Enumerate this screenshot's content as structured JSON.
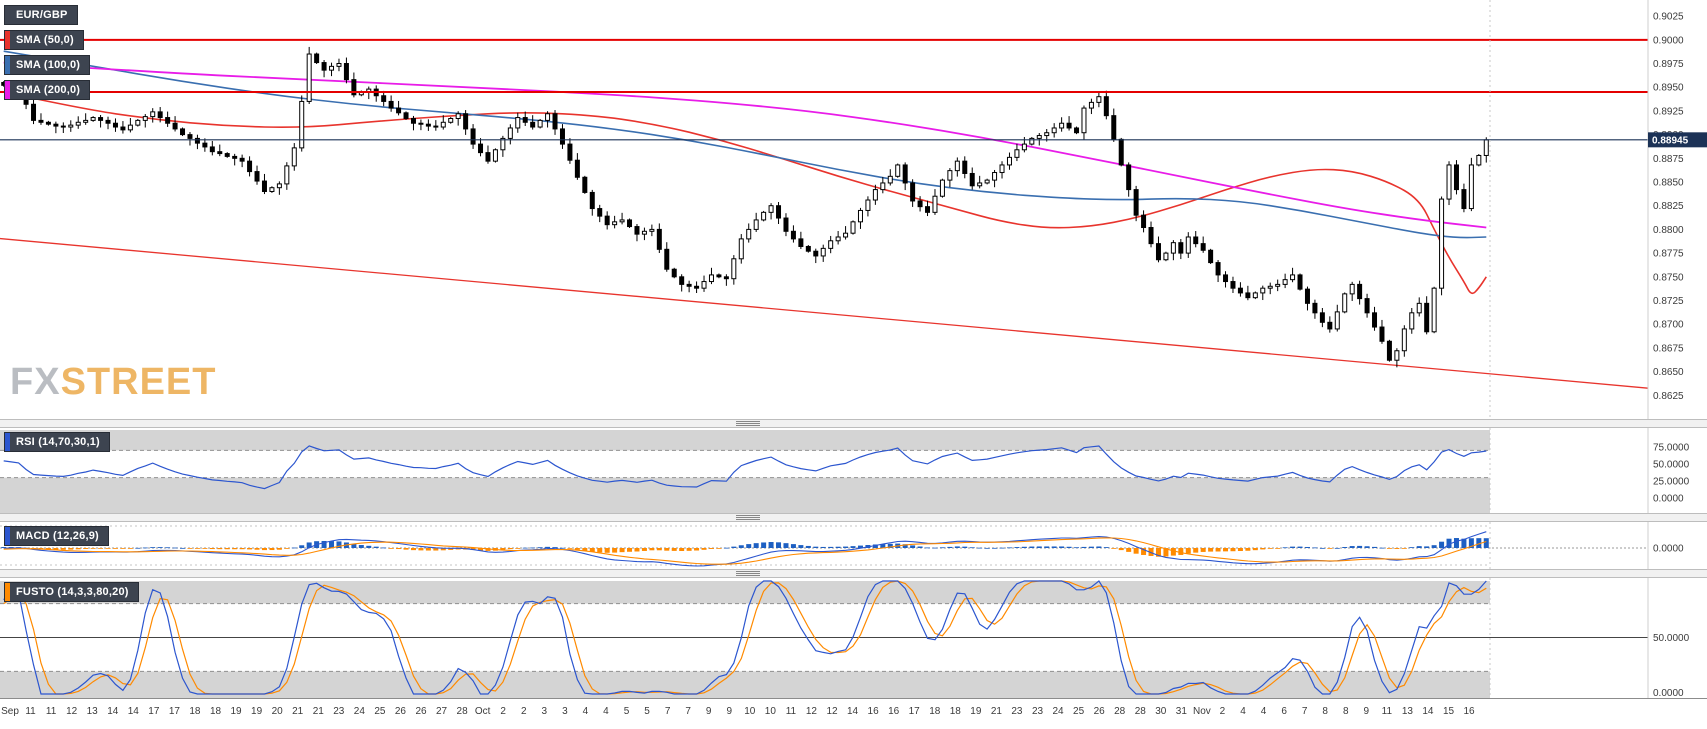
{
  "pair_label": "EUR/GBP",
  "watermark": {
    "fx": "FX",
    "street": "STREET"
  },
  "badges": {
    "main": [
      {
        "label": "EUR/GBP",
        "stripe": "#3d4450"
      },
      {
        "label": "SMA (50,0)",
        "stripe": "#e8342d"
      },
      {
        "label": "SMA (100,0)",
        "stripe": "#3a6fb0"
      },
      {
        "label": "SMA (200,0)",
        "stripe": "#e81ce8"
      }
    ],
    "rsi": {
      "label": "RSI (14,70,30,1)",
      "stripe": "#2c56cf"
    },
    "macd": {
      "label": "MACD (12,26,9)",
      "stripe": "#2c56cf"
    },
    "stoch": {
      "label": "FUSTO (14,3,3,80,20)",
      "stripe": "#ff8a00"
    }
  },
  "colors": {
    "candle_up": "#ffffff",
    "candle_down": "#000000",
    "candle_outline": "#000000",
    "sma50": "#e8342d",
    "sma100": "#3a6fb0",
    "sma200": "#e81ce8",
    "hline_red": "#e40000",
    "trendline": "#e8342d",
    "current_price_line": "#1c3256",
    "price_badge_bg": "#1c3256",
    "price_badge_text": "#ffffff",
    "rsi_line": "#2c56cf",
    "macd_line": "#2c56cf",
    "signal_line": "#ff8a00",
    "hist_pos": "#1d5fc2",
    "hist_neg": "#ff8a00",
    "stoch_k": "#2c56cf",
    "stoch_d": "#ff8a00",
    "band_gray": "#d4d4d4",
    "axis_text": "#3a3a3a"
  },
  "chart_data": {
    "type": "candlestick",
    "title": "EUR/GBP price chart with SMA(50), SMA(100), SMA(200) overlays and RSI(14,70,30,1), MACD(12,26,9), Fast Stochastic FUSTO(14,3,3,80,20) sub-panels",
    "pair": "EUR/GBP",
    "current_price": 0.88945,
    "y_range": {
      "top": 0.9042,
      "bottom": 0.86
    },
    "y_ticks": [
      0.9025,
      0.9,
      0.8975,
      0.895,
      0.8925,
      0.89,
      0.8875,
      0.885,
      0.8825,
      0.88,
      0.8775,
      0.875,
      0.8725,
      0.87,
      0.8675,
      0.865,
      0.8625
    ],
    "hlines": [
      {
        "price": 0.9,
        "color": "#e40000"
      },
      {
        "price": 0.8945,
        "color": "#e40000"
      }
    ],
    "trendline": {
      "from_price": 0.879,
      "to_price": 0.8648,
      "color": "#e8342d"
    },
    "first_open": 0.8955,
    "pre_closes": [
      0.8975,
      0.8968,
      0.8972,
      0.896,
      0.8955,
      0.8962,
      0.895,
      0.8945,
      0.8952,
      0.8958,
      0.8948,
      0.894,
      0.8945,
      0.8952,
      0.8944,
      0.8938,
      0.8942,
      0.895,
      0.8946,
      0.894,
      0.8935,
      0.8942,
      0.8948,
      0.894,
      0.8932,
      0.8938,
      0.8944,
      0.8936,
      0.893,
      0.8936,
      0.8942,
      0.8934,
      0.894,
      0.8946,
      0.8938,
      0.8944,
      0.895,
      0.8946,
      0.8942,
      0.8948
    ],
    "closes": [
      0.8952,
      0.895,
      0.8948,
      0.8932,
      0.8915,
      0.8913,
      0.8911,
      0.8909,
      0.8908,
      0.891,
      0.8913,
      0.8915,
      0.8918,
      0.8915,
      0.8912,
      0.8908,
      0.8905,
      0.891,
      0.8915,
      0.8919,
      0.8924,
      0.8918,
      0.8912,
      0.8906,
      0.89,
      0.8896,
      0.8891,
      0.8887,
      0.8882,
      0.888,
      0.8877,
      0.8875,
      0.8872,
      0.8861,
      0.8851,
      0.884,
      0.8844,
      0.8848,
      0.8867,
      0.8886,
      0.8935,
      0.8985,
      0.8976,
      0.8968,
      0.8972,
      0.8975,
      0.8958,
      0.8942,
      0.8945,
      0.8948,
      0.8941,
      0.8935,
      0.8928,
      0.8923,
      0.8917,
      0.8912,
      0.8911,
      0.8909,
      0.8908,
      0.8913,
      0.8917,
      0.8922,
      0.8906,
      0.889,
      0.8881,
      0.8872,
      0.8884,
      0.8896,
      0.8907,
      0.8918,
      0.8913,
      0.8908,
      0.8915,
      0.8922,
      0.8906,
      0.889,
      0.8873,
      0.8855,
      0.8839,
      0.8822,
      0.8814,
      0.8805,
      0.8808,
      0.881,
      0.8803,
      0.8795,
      0.8798,
      0.88,
      0.8779,
      0.8758,
      0.875,
      0.8742,
      0.874,
      0.8738,
      0.8745,
      0.8752,
      0.875,
      0.8748,
      0.8769,
      0.879,
      0.88,
      0.881,
      0.8818,
      0.8825,
      0.8812,
      0.8798,
      0.879,
      0.8782,
      0.8777,
      0.8772,
      0.878,
      0.8788,
      0.8792,
      0.8796,
      0.8808,
      0.882,
      0.8831,
      0.8842,
      0.8849,
      0.8856,
      0.8868,
      0.8849,
      0.883,
      0.8824,
      0.8818,
      0.8835,
      0.8852,
      0.8862,
      0.8872,
      0.8859,
      0.8846,
      0.8849,
      0.8852,
      0.886,
      0.8868,
      0.8876,
      0.8884,
      0.889,
      0.8896,
      0.8899,
      0.8902,
      0.8907,
      0.8912,
      0.8907,
      0.8902,
      0.8928,
      0.8934,
      0.894,
      0.892,
      0.8895,
      0.8868,
      0.8842,
      0.8815,
      0.8802,
      0.8785,
      0.8768,
      0.8775,
      0.8786,
      0.8775,
      0.8792,
      0.8785,
      0.8778,
      0.8765,
      0.8752,
      0.8745,
      0.8738,
      0.8733,
      0.8728,
      0.8733,
      0.8738,
      0.874,
      0.8742,
      0.8747,
      0.8752,
      0.8737,
      0.8722,
      0.8712,
      0.8702,
      0.8695,
      0.8713,
      0.8732,
      0.8742,
      0.8727,
      0.8712,
      0.8697,
      0.8682,
      0.8662,
      0.8672,
      0.8695,
      0.8712,
      0.8722,
      0.8692,
      0.8738,
      0.8832,
      0.8868,
      0.8842,
      0.8822,
      0.8868,
      0.8878,
      0.88945
    ],
    "sma50_anchors": [
      [
        0,
        0.8945
      ],
      [
        10,
        0.8928
      ],
      [
        20,
        0.8916
      ],
      [
        30,
        0.8909
      ],
      [
        40,
        0.8907
      ],
      [
        50,
        0.8914
      ],
      [
        60,
        0.892
      ],
      [
        70,
        0.8924
      ],
      [
        80,
        0.892
      ],
      [
        88,
        0.891
      ],
      [
        96,
        0.8895
      ],
      [
        104,
        0.8876
      ],
      [
        112,
        0.8856
      ],
      [
        120,
        0.8838
      ],
      [
        128,
        0.8821
      ],
      [
        134,
        0.8808
      ],
      [
        140,
        0.8801
      ],
      [
        146,
        0.8803
      ],
      [
        152,
        0.8812
      ],
      [
        158,
        0.8826
      ],
      [
        164,
        0.8842
      ],
      [
        170,
        0.8856
      ],
      [
        176,
        0.8864
      ],
      [
        181,
        0.8862
      ],
      [
        186,
        0.885
      ],
      [
        190,
        0.8832
      ],
      [
        192,
        0.88
      ],
      [
        194,
        0.877
      ],
      [
        196,
        0.8745
      ],
      [
        197,
        0.873
      ],
      [
        198,
        0.8738
      ],
      [
        199,
        0.875
      ]
    ],
    "sma100_anchors": [
      [
        0,
        0.8988
      ],
      [
        12,
        0.8972
      ],
      [
        24,
        0.8956
      ],
      [
        36,
        0.8942
      ],
      [
        48,
        0.8931
      ],
      [
        60,
        0.8923
      ],
      [
        72,
        0.8915
      ],
      [
        82,
        0.8906
      ],
      [
        92,
        0.8894
      ],
      [
        102,
        0.8879
      ],
      [
        112,
        0.8863
      ],
      [
        122,
        0.8849
      ],
      [
        132,
        0.8839
      ],
      [
        142,
        0.8833
      ],
      [
        150,
        0.8831
      ],
      [
        158,
        0.8833
      ],
      [
        166,
        0.883
      ],
      [
        174,
        0.882
      ],
      [
        182,
        0.8808
      ],
      [
        190,
        0.8796
      ],
      [
        195,
        0.8791
      ],
      [
        199,
        0.8792
      ]
    ],
    "sma200_anchors": [
      [
        0,
        0.8976
      ],
      [
        20,
        0.8966
      ],
      [
        40,
        0.8958
      ],
      [
        60,
        0.8951
      ],
      [
        80,
        0.8943
      ],
      [
        95,
        0.8935
      ],
      [
        108,
        0.8925
      ],
      [
        120,
        0.8912
      ],
      [
        132,
        0.8896
      ],
      [
        144,
        0.8878
      ],
      [
        156,
        0.8859
      ],
      [
        168,
        0.884
      ],
      [
        180,
        0.8822
      ],
      [
        190,
        0.881
      ],
      [
        199,
        0.8802
      ]
    ],
    "rsi_params": {
      "period": 14,
      "upper": 70,
      "lower": 30
    },
    "rsi_ticks": [
      75,
      50,
      25,
      0
    ],
    "macd_params": {
      "fast": 12,
      "slow": 26,
      "signal": 9
    },
    "macd_ticks": [
      0
    ],
    "stoch_params": {
      "period": 14,
      "k_smooth": 3,
      "d_smooth": 3,
      "upper": 80,
      "lower": 20
    },
    "stoch_ticks": [
      50,
      0
    ],
    "x_dates": [
      "Sep",
      "11",
      "11",
      "12",
      "13",
      "14",
      "14",
      "17",
      "17",
      "18",
      "18",
      "19",
      "19",
      "20",
      "21",
      "21",
      "23",
      "24",
      "25",
      "26",
      "26",
      "27",
      "28",
      "Oct",
      "2",
      "2",
      "3",
      "3",
      "4",
      "4",
      "5",
      "5",
      "7",
      "7",
      "9",
      "9",
      "10",
      "10",
      "11",
      "12",
      "12",
      "14",
      "16",
      "16",
      "17",
      "18",
      "18",
      "19",
      "21",
      "23",
      "23",
      "24",
      "25",
      "26",
      "28",
      "28",
      "30",
      "31",
      "Nov",
      "2",
      "4",
      "4",
      "6",
      "7",
      "8",
      "8",
      "9",
      "11",
      "13",
      "14",
      "15",
      "16"
    ]
  }
}
